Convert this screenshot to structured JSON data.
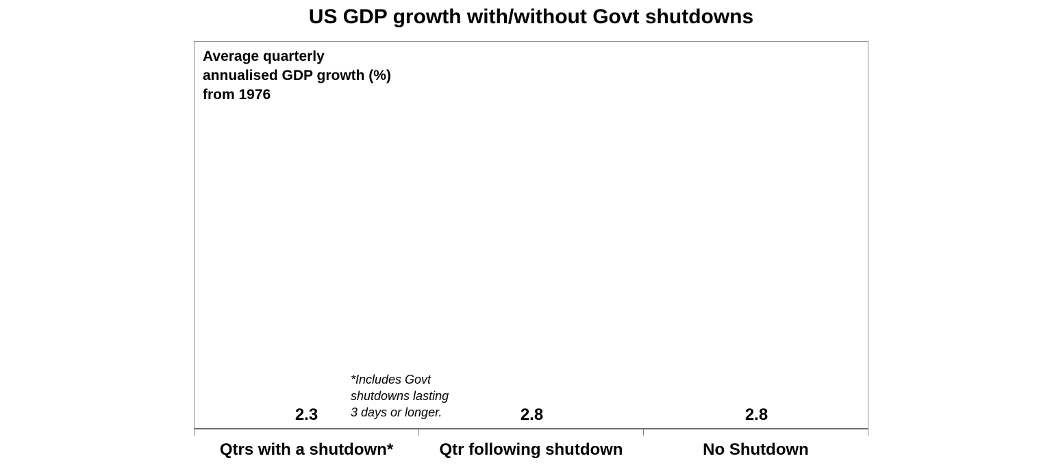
{
  "title": "US GDP growth with/without Govt shutdowns",
  "annotation_text": "Average quarterly\nannualised GDP growth (%)\nfrom 1976",
  "footnote_text": "*Includes Govt\nshutdowns lasting\n3 days or longer.",
  "colors": {
    "bar": "#002060",
    "plot_border": "#8c8c8c",
    "axis": "#707070",
    "text": "#000000",
    "background": "#ffffff"
  },
  "chart_data": {
    "type": "bar",
    "title": "US GDP growth with/without Govt shutdowns",
    "categories": [
      "Qtrs with a shutdown*",
      "Qtr following shutdown",
      "No Shutdown"
    ],
    "values": [
      2.3,
      2.8,
      2.8
    ],
    "data_labels": [
      "2.3",
      "2.8",
      "2.8"
    ],
    "xlabel": "",
    "ylabel": "Average quarterly annualised GDP growth (%) from 1976",
    "ylim": [
      0,
      3.45
    ],
    "grid": false,
    "legend": "none",
    "y_axis_visible": false,
    "annotation": "Average quarterly annualised GDP growth (%) from 1976",
    "footnote": "*Includes Govt shutdowns lasting 3 days or longer.",
    "bar_color": "#002060"
  }
}
